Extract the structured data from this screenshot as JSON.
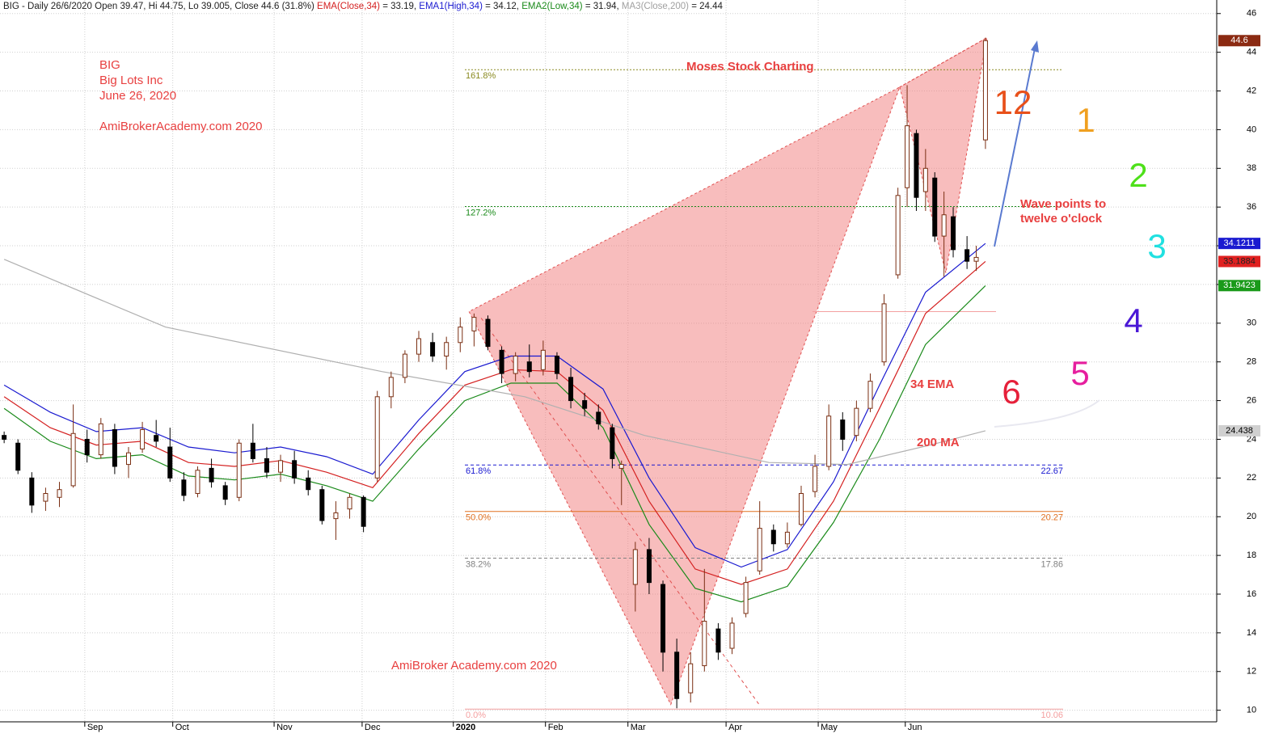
{
  "chart_data": {
    "type": "candlestick",
    "header": [
      {
        "text": "BIG - Daily 26/6/2020 Open 39.47, Hi 44.75, Lo 39.005, Close 44.6 (31.8%) ",
        "color": "#222222"
      },
      {
        "text": "EMA(Close,34)",
        "color": "#d42020"
      },
      {
        "text": " = 33.19, ",
        "color": "#222222"
      },
      {
        "text": "EMA1(High,34)",
        "color": "#1a1ad0"
      },
      {
        "text": " = 34.12, ",
        "color": "#222222"
      },
      {
        "text": "EMA2(Low,34)",
        "color": "#1a8a1a"
      },
      {
        "text": " = 31.94, ",
        "color": "#222222"
      },
      {
        "text": "MA3(Close,200)",
        "color": "#a0a0a0"
      },
      {
        "text": " = 24.44",
        "color": "#222222"
      }
    ],
    "annotations": {
      "ticker": "BIG",
      "company": "Big Lots Inc",
      "date": "June 26, 2020",
      "site_top": "AmiBrokerAcademy.com  2020",
      "credit": "Moses Stock Charting",
      "wave1": "Wave points to",
      "wave2": "twelve o'clock",
      "ema_label": "34 EMA",
      "ma_label": "200 MA",
      "site_bottom": "AmiBroker Academy.com  2020",
      "clock": [
        {
          "text": "12",
          "color": "#e8501a"
        },
        {
          "text": "1",
          "color": "#f0a020"
        },
        {
          "text": "2",
          "color": "#4ee01a"
        },
        {
          "text": "3",
          "color": "#20e0e0"
        },
        {
          "text": "4",
          "color": "#4a18d6"
        },
        {
          "text": "5",
          "color": "#e61e9e"
        },
        {
          "text": "6",
          "color": "#e6203a"
        }
      ]
    },
    "xlim": [
      -0.9,
      263.2
    ],
    "ylim": [
      9.4,
      46.7
    ],
    "yticks": [
      10,
      12,
      14,
      16,
      18,
      20,
      22,
      24,
      26,
      28,
      30,
      32,
      34,
      36,
      38,
      40,
      42,
      44,
      46
    ],
    "xticks": [
      {
        "value": 17.5,
        "label": "Sep"
      },
      {
        "value": 36.6,
        "label": "Oct"
      },
      {
        "value": 58.6,
        "label": "Nov"
      },
      {
        "value": 77.7,
        "label": "Dec"
      },
      {
        "value": 97.5,
        "label": "2020"
      },
      {
        "value": 117.5,
        "label": "Feb"
      },
      {
        "value": 135.4,
        "label": "Mar"
      },
      {
        "value": 156.7,
        "label": "Apr"
      },
      {
        "value": 176.7,
        "label": "May"
      },
      {
        "value": 195.6,
        "label": "Jun"
      }
    ],
    "grid": true,
    "candles": {
      "up_color": "#7a2e12",
      "down_color": "#000000",
      "x": [
        0,
        3,
        6,
        9,
        12,
        15,
        18,
        21,
        24,
        27,
        30,
        33,
        36,
        39,
        42,
        45,
        48,
        51,
        54,
        57,
        60,
        63,
        66,
        69,
        72,
        75,
        78,
        81,
        84,
        87,
        90,
        93,
        96,
        99,
        102,
        105,
        108,
        111,
        114,
        117,
        120,
        123,
        126,
        129,
        132,
        134,
        137,
        140,
        143,
        146,
        149,
        152,
        155,
        158,
        161,
        164,
        167,
        170,
        173,
        176,
        179,
        182,
        185,
        188,
        191,
        194,
        196,
        198,
        200,
        202,
        204,
        206,
        209,
        211,
        213
      ],
      "open": [
        24.2,
        23.8,
        22.0,
        20.8,
        21.0,
        21.6,
        24.0,
        23.2,
        24.5,
        22.7,
        23.5,
        24.2,
        23.6,
        21.9,
        21.2,
        22.5,
        21.6,
        21.0,
        23.8,
        23.0,
        22.3,
        22.9,
        22.0,
        21.4,
        19.9,
        20.4,
        21.0,
        22.0,
        26.2,
        27.2,
        28.4,
        29.0,
        28.3,
        29.0,
        29.6,
        30.2,
        28.6,
        27.4,
        28.0,
        27.6,
        28.3,
        27.2,
        26.0,
        25.4,
        24.6,
        22.5,
        16.5,
        18.3,
        16.5,
        13.0,
        10.9,
        12.3,
        14.2,
        13.2,
        15.0,
        17.2,
        19.3,
        18.6,
        19.6,
        21.3,
        22.6,
        25.0,
        24.2,
        25.6,
        28.0,
        32.5,
        37.0,
        39.8,
        36.8,
        37.5,
        34.5,
        35.5,
        33.8,
        33.2,
        39.47
      ],
      "high": [
        24.4,
        24.0,
        22.3,
        21.5,
        21.8,
        25.8,
        24.5,
        25.1,
        24.8,
        23.6,
        24.9,
        25.0,
        24.6,
        22.3,
        22.6,
        23.0,
        21.8,
        24.0,
        24.8,
        23.6,
        23.2,
        23.4,
        22.4,
        21.6,
        20.8,
        21.2,
        21.1,
        26.5,
        27.5,
        28.6,
        29.6,
        29.5,
        29.3,
        30.3,
        30.5,
        30.4,
        28.8,
        28.5,
        28.9,
        29.1,
        28.5,
        27.7,
        26.4,
        25.8,
        24.8,
        22.9,
        18.7,
        18.9,
        16.7,
        13.7,
        13.0,
        17.3,
        14.5,
        14.8,
        16.9,
        20.8,
        19.6,
        19.7,
        21.6,
        23.2,
        25.8,
        25.4,
        26.0,
        27.4,
        31.5,
        37.0,
        42.3,
        40.0,
        39.0,
        37.8,
        36.8,
        36.0,
        34.5,
        34.0,
        44.75
      ],
      "low": [
        23.8,
        22.2,
        20.2,
        20.3,
        20.5,
        21.5,
        22.8,
        23.0,
        22.2,
        22.0,
        23.3,
        23.6,
        21.8,
        20.8,
        21.0,
        21.5,
        20.6,
        20.8,
        22.8,
        22.0,
        21.8,
        21.7,
        21.1,
        19.6,
        18.8,
        19.9,
        19.2,
        21.8,
        25.6,
        26.9,
        28.0,
        28.0,
        27.6,
        28.5,
        28.8,
        28.6,
        26.9,
        27.0,
        27.2,
        27.3,
        27.1,
        25.6,
        25.2,
        24.5,
        22.5,
        20.6,
        15.1,
        16.0,
        12.0,
        10.1,
        10.4,
        12.0,
        12.6,
        12.9,
        14.8,
        17.0,
        18.2,
        18.4,
        19.5,
        21.0,
        22.4,
        23.4,
        23.9,
        25.4,
        27.8,
        32.3,
        36.0,
        35.8,
        35.8,
        34.2,
        32.4,
        33.4,
        32.8,
        32.7,
        39.005
      ],
      "close": [
        24.0,
        22.4,
        20.6,
        21.2,
        21.4,
        24.3,
        23.2,
        24.8,
        22.6,
        23.3,
        24.5,
        23.9,
        22.0,
        21.1,
        22.4,
        21.8,
        20.9,
        23.8,
        23.0,
        22.3,
        22.9,
        22.0,
        21.4,
        19.8,
        20.2,
        21.0,
        19.5,
        26.2,
        27.2,
        28.4,
        29.2,
        28.3,
        29.0,
        29.8,
        30.3,
        28.8,
        27.4,
        28.3,
        27.5,
        28.6,
        27.4,
        26.0,
        25.6,
        24.8,
        23.0,
        22.7,
        18.3,
        16.6,
        13.0,
        10.6,
        12.4,
        14.6,
        13.0,
        14.5,
        16.6,
        19.4,
        18.6,
        19.2,
        21.2,
        22.6,
        25.2,
        24.0,
        25.6,
        27.0,
        31.0,
        36.6,
        40.2,
        36.5,
        38.0,
        34.5,
        35.6,
        33.8,
        33.2,
        33.4,
        44.6
      ]
    },
    "series": [
      {
        "name": "EMA1(High,34)",
        "color": "#1a1ad0",
        "x": [
          0,
          10,
          20,
          30,
          40,
          50,
          60,
          70,
          80,
          90,
          100,
          110,
          120,
          130,
          140,
          150,
          160,
          170,
          180,
          190,
          200,
          213
        ],
        "values": [
          26.8,
          25.4,
          24.4,
          24.6,
          23.6,
          23.3,
          23.6,
          23.1,
          22.2,
          25.0,
          27.5,
          28.3,
          28.3,
          26.6,
          22.0,
          18.4,
          17.4,
          18.3,
          21.8,
          26.8,
          31.6,
          34.12
        ]
      },
      {
        "name": "EMA(Close,34)",
        "color": "#d42020",
        "x": [
          0,
          10,
          20,
          30,
          40,
          50,
          60,
          70,
          80,
          90,
          100,
          110,
          120,
          130,
          140,
          150,
          160,
          170,
          180,
          190,
          200,
          213
        ],
        "values": [
          26.2,
          24.6,
          23.7,
          23.9,
          22.8,
          22.6,
          22.9,
          22.3,
          21.5,
          24.3,
          26.8,
          27.6,
          27.5,
          25.5,
          20.8,
          17.3,
          16.5,
          17.3,
          20.8,
          25.6,
          30.5,
          33.19
        ]
      },
      {
        "name": "EMA2(Low,34)",
        "color": "#1a8a1a",
        "x": [
          0,
          10,
          20,
          30,
          40,
          50,
          60,
          70,
          80,
          90,
          100,
          110,
          120,
          130,
          140,
          150,
          160,
          170,
          180,
          190,
          200,
          213
        ],
        "values": [
          25.6,
          23.9,
          23.0,
          23.2,
          22.1,
          21.9,
          22.2,
          21.6,
          20.8,
          23.5,
          26.0,
          26.9,
          26.9,
          24.6,
          19.6,
          16.3,
          15.6,
          16.4,
          19.7,
          24.0,
          28.9,
          31.94
        ]
      },
      {
        "name": "MA3(Close,200)",
        "color": "#b0b0b0",
        "x": [
          0,
          35,
          82,
          113,
          139,
          166,
          183,
          201,
          213
        ],
        "values": [
          33.3,
          29.8,
          27.5,
          26.2,
          24.2,
          22.8,
          22.7,
          23.7,
          24.44
        ]
      }
    ],
    "last_labels": [
      {
        "value": 44.6,
        "bg": "#8b2a12",
        "fg": "#ffffff"
      },
      {
        "value": 34.1211,
        "bg": "#1a1ad0",
        "fg": "#ffffff"
      },
      {
        "value": 33.1884,
        "bg": "#e02020",
        "fg": "#222222"
      },
      {
        "value": 31.9423,
        "bg": "#1a9a1a",
        "fg": "#ffffff"
      },
      {
        "value": 24.438,
        "bg": "#d0d0d0",
        "fg": "#000000"
      }
    ],
    "fib_levels": [
      {
        "label": "161.8%",
        "value": 43.1,
        "color": "#8a8a20",
        "style": "dotted",
        "show_value": false
      },
      {
        "label": "127.2%",
        "value": 36.03,
        "color": "#1a8a1a",
        "style": "dotted",
        "show_value": false
      },
      {
        "label": "61.8%",
        "value": 22.67,
        "color": "#1a1ad0",
        "style": "dashed",
        "show_value": true
      },
      {
        "label": "50.0%",
        "value": 20.27,
        "color": "#e07020",
        "style": "solid",
        "show_value": true
      },
      {
        "label": "38.2%",
        "value": 17.86,
        "color": "#808080",
        "style": "dashed",
        "show_value": true
      },
      {
        "label": "0.0%",
        "value": 10.06,
        "color": "#f4a0a0",
        "style": "solid",
        "show_value": true
      }
    ],
    "pattern_x": [
      100.9,
      144.7,
      194.4,
      204.4,
      213.3
    ],
    "pattern_y": [
      30.6,
      10.3,
      42.2,
      32.6,
      44.75
    ],
    "pattern_color": "#f27c7c"
  }
}
